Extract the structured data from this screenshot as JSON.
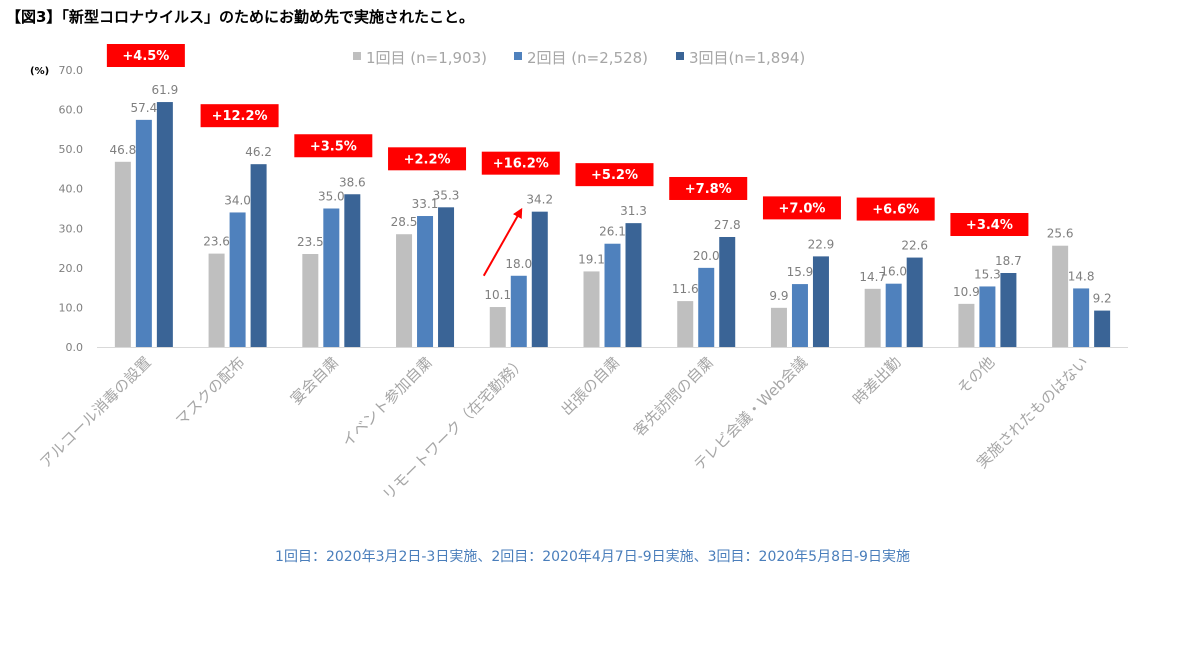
{
  "title": "【図3】「新型コロナウイルス」のためにお勤め先で実施されたこと。",
  "footnote": "1回目：2020年3月2日-3日実施、2回目：2020年4月7日-9日実施、3回目：2020年5月8日-9日実施",
  "chart_data": {
    "type": "bar",
    "unit_label": "(%)",
    "ylim": [
      0,
      70
    ],
    "yticks": [
      "0.0",
      "10.0",
      "20.0",
      "30.0",
      "40.0",
      "50.0",
      "60.0",
      "70.0"
    ],
    "categories": [
      "アルコール消毒の設置",
      "マスクの配布",
      "宴会自粛",
      "イベント参加自粛",
      "リモートワーク（在宅勤務）",
      "出張の自粛",
      "客先訪問の自粛",
      "テレビ会議・Web会議",
      "時差出勤",
      "その他",
      "実施されたものはない"
    ],
    "series": [
      {
        "name": "1回目 (n=1,903)",
        "color": "#bfbfbf",
        "values": [
          46.8,
          23.6,
          23.5,
          28.5,
          10.1,
          19.1,
          11.6,
          9.9,
          14.7,
          10.9,
          25.6
        ],
        "labels": [
          "46.8",
          "23.6",
          "23.5",
          "28.5",
          "10.1",
          "19.1",
          "11.6",
          "9.9",
          "14.7",
          "10.9",
          "25.6"
        ]
      },
      {
        "name": "2回目 (n=2,528)",
        "color": "#4f81bd",
        "values": [
          57.4,
          34.0,
          35.0,
          33.1,
          18.0,
          26.1,
          20.0,
          15.9,
          16.0,
          15.3,
          14.8
        ],
        "labels": [
          "57.4",
          "34.0",
          "35.0",
          "33.1",
          "18.0",
          "26.1",
          "20.0",
          "15.9",
          "16.0",
          "15.3",
          "14.8"
        ]
      },
      {
        "name": "3回目(n=1,894)",
        "color": "#3a6496",
        "values": [
          61.9,
          46.2,
          38.6,
          35.3,
          34.2,
          31.3,
          27.8,
          22.9,
          22.6,
          18.7,
          9.2
        ],
        "labels": [
          "61.9",
          "46.2",
          "38.6",
          "35.3",
          "34.2",
          "31.3",
          "27.8",
          "22.9",
          "22.6",
          "18.7",
          "9.2"
        ]
      }
    ],
    "differences": [
      "+4.5%",
      "+12.2%",
      "+3.5%",
      "+2.2%",
      "+16.2%",
      "+5.2%",
      "+7.8%",
      "+7.0%",
      "+6.6%",
      "+3.4%",
      null
    ],
    "difference_color": "#ff0000",
    "highlight_arrow_category": "リモートワーク（在宅勤務）",
    "grid": false,
    "legend": "top"
  }
}
